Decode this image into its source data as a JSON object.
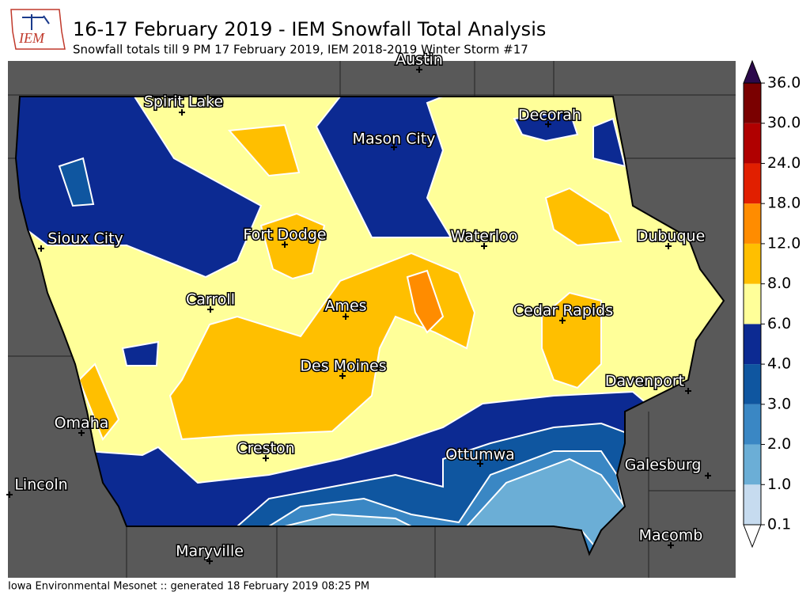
{
  "header": {
    "logo": "IEM",
    "title": "16-17 February 2019 - IEM Snowfall Total Analysis",
    "subtitle": "Snowfall totals till 9 PM 17 February 2019, IEM 2018-2019 Winter Storm #17"
  },
  "map": {
    "cities": [
      {
        "label": "Austin"
      },
      {
        "label": "Spirit Lake"
      },
      {
        "label": "Decorah"
      },
      {
        "label": "Mason City"
      },
      {
        "label": "Sioux City"
      },
      {
        "label": "Fort Dodge"
      },
      {
        "label": "Waterloo"
      },
      {
        "label": "Dubuque"
      },
      {
        "label": "Carroll"
      },
      {
        "label": "Ames"
      },
      {
        "label": "Cedar Rapids"
      },
      {
        "label": "Des Moines"
      },
      {
        "label": "Davenport"
      },
      {
        "label": "Omaha"
      },
      {
        "label": "Creston"
      },
      {
        "label": "Ottumwa"
      },
      {
        "label": "Galesburg"
      },
      {
        "label": "Lincoln"
      },
      {
        "label": "Maryville"
      },
      {
        "label": "Macomb"
      }
    ]
  },
  "legend": {
    "ticks": [
      {
        "value": 0.1,
        "label": "0.1"
      },
      {
        "value": 1,
        "label": "1.0"
      },
      {
        "value": 2,
        "label": "2.0"
      },
      {
        "value": 3,
        "label": "3.0"
      },
      {
        "value": 4,
        "label": "4.0"
      },
      {
        "value": 6,
        "label": "6.0"
      },
      {
        "value": 8,
        "label": "8.0"
      },
      {
        "value": 12,
        "label": "12.0"
      },
      {
        "value": 18,
        "label": "18.0"
      },
      {
        "value": 24,
        "label": "24.0"
      },
      {
        "value": 30,
        "label": "30.0"
      },
      {
        "value": 36,
        "label": "36.0"
      }
    ],
    "colors": [
      "#c6dbef",
      "#6baed6",
      "#3a87c4",
      "#0f56a0",
      "#0c2a92",
      "#ffff99",
      "#ffbf00",
      "#ff8c00",
      "#e11f00",
      "#b00000",
      "#7a0000"
    ],
    "under_color": "#ffffff",
    "over_color": "#2b0a4b"
  },
  "footer": "Iowa Environmental Mesonet :: generated 18 February 2019 08:25 PM"
}
